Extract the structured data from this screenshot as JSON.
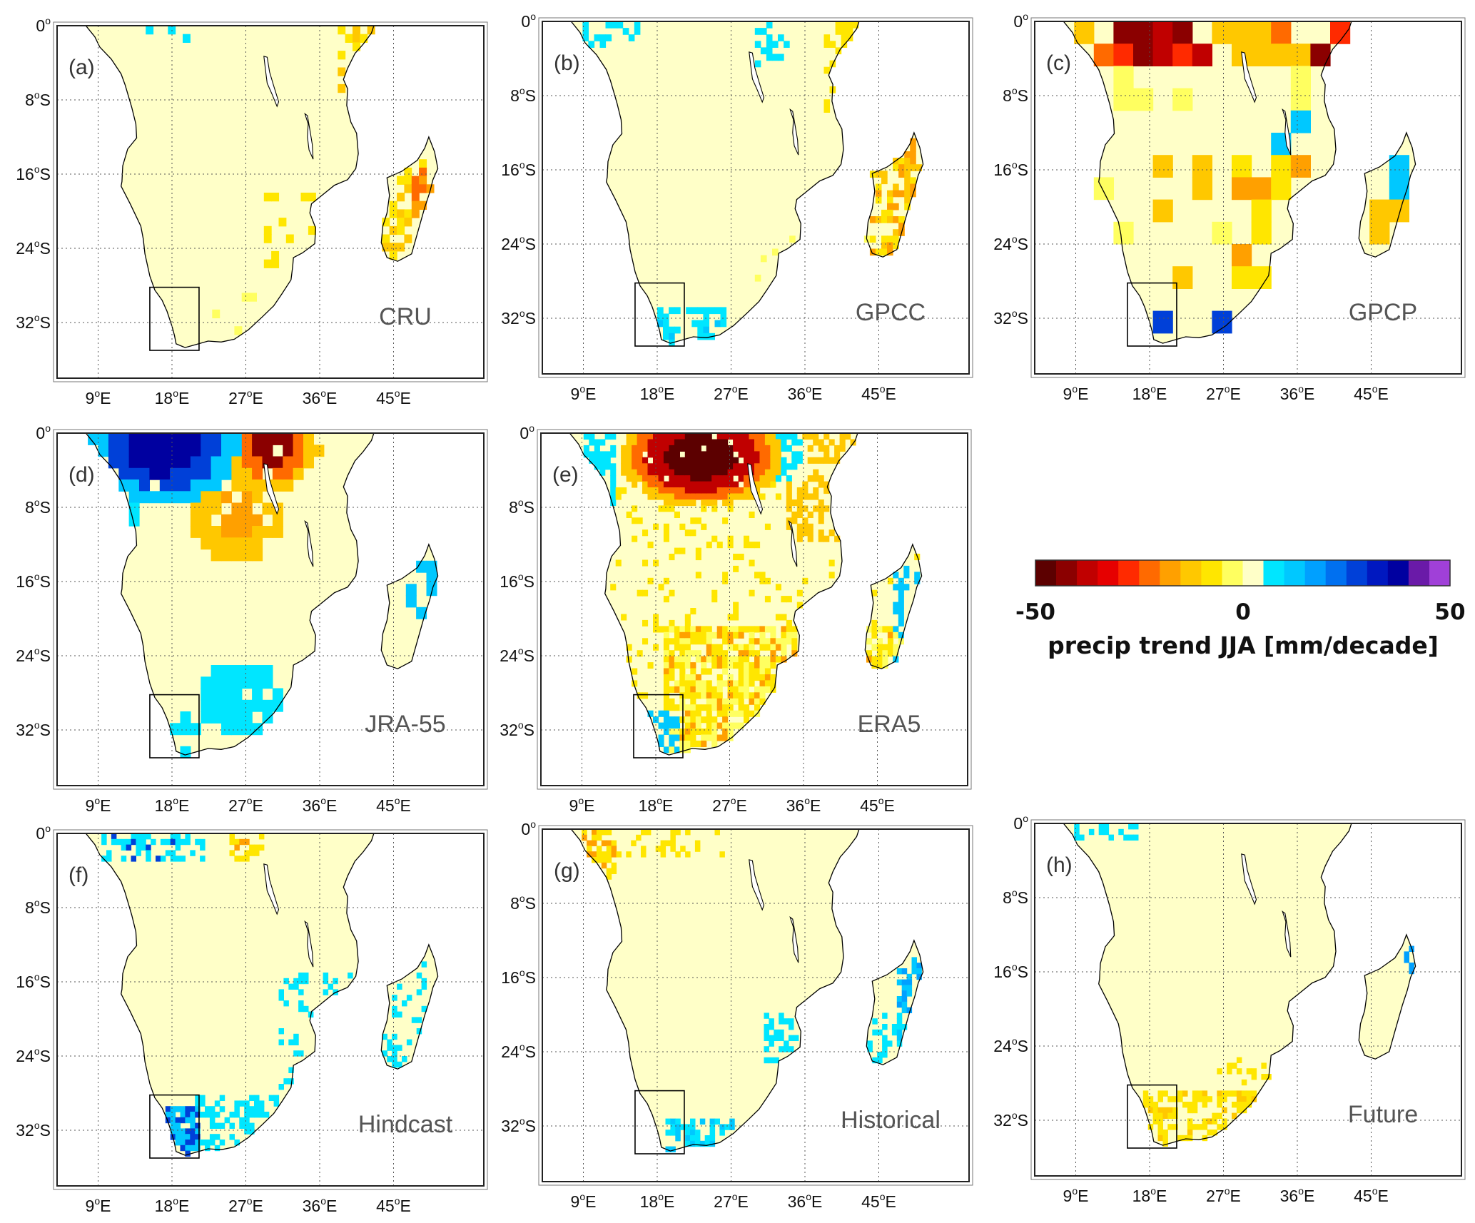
{
  "figure": {
    "lat_ticks": [
      "0",
      "8",
      "16",
      "24",
      "32"
    ],
    "lat_suffix": "S",
    "lon_ticks": [
      "9",
      "18",
      "27",
      "36",
      "45"
    ],
    "lon_suffix": "E",
    "degree_symbol": "o"
  },
  "panels": [
    {
      "id": "a",
      "letter": "(a)",
      "name": "CRU"
    },
    {
      "id": "b",
      "letter": "(b)",
      "name": "GPCC"
    },
    {
      "id": "c",
      "letter": "(c)",
      "name": "GPCP"
    },
    {
      "id": "d",
      "letter": "(d)",
      "name": "JRA-55"
    },
    {
      "id": "e",
      "letter": "(e)",
      "name": "ERA5"
    },
    {
      "id": "f",
      "letter": "(f)",
      "name": "Hindcast"
    },
    {
      "id": "g",
      "letter": "(g)",
      "name": "Historical"
    },
    {
      "id": "h",
      "letter": "(h)",
      "name": "Future"
    }
  ],
  "colorbar": {
    "min_label": "-50",
    "mid_label": "0",
    "max_label": "50",
    "caption": "precip trend JJA [mm/decade]",
    "colors": [
      "#5c0000",
      "#8b0000",
      "#c00000",
      "#e60000",
      "#ff2a00",
      "#ff6a00",
      "#ffa000",
      "#ffc800",
      "#ffe600",
      "#ffff60",
      "#ffffc8",
      "#00e6ff",
      "#00c8ff",
      "#00a0ff",
      "#0070f0",
      "#0040d8",
      "#0018c0",
      "#0000a0",
      "#6a1aa8",
      "#a040d8"
    ]
  },
  "map_colors": {
    "land": "#ffffc8",
    "ocean": "#ffffff",
    "coast": "#000000"
  }
}
